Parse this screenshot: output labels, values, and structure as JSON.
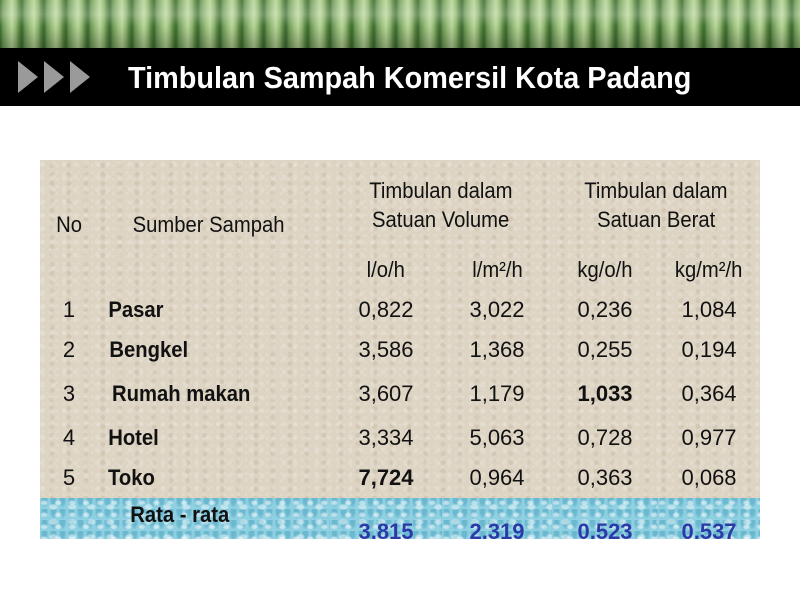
{
  "slide": {
    "title": "Timbulan Sampah Komersil Kota Padang"
  },
  "table": {
    "headers": {
      "no": "No",
      "source": "Sumber Sampah",
      "volume_group_line1": "Timbulan dalam",
      "volume_group_line2": "Satuan Volume",
      "weight_group_line1": "Timbulan dalam",
      "weight_group_line2": "Satuan Berat",
      "unit_lo_h": "l/o/h",
      "unit_lm2_h": "l/m²/h",
      "unit_kgo_h": "kg/o/h",
      "unit_kgm2_h": "kg/m²/h"
    },
    "rows": [
      {
        "no": "1",
        "source": "Pasar",
        "lo_h": "0,822",
        "lm2_h": "3,022",
        "kgo_h": "0,236",
        "kgm2_h": "1,084"
      },
      {
        "no": "2",
        "source": "Bengkel",
        "lo_h": "3,586",
        "lm2_h": "1,368",
        "kgo_h": "0,255",
        "kgm2_h": "0,194"
      },
      {
        "no": "3",
        "source": "Rumah makan",
        "lo_h": "3,607",
        "lm2_h": "1,179",
        "kgo_h": "1,033",
        "kgm2_h": "0,364"
      },
      {
        "no": "4",
        "source": "Hotel",
        "lo_h": "3,334",
        "lm2_h": "5,063",
        "kgo_h": "0,728",
        "kgm2_h": "0,977"
      },
      {
        "no": "5",
        "source": "Toko",
        "lo_h": "7,724",
        "lm2_h": "0,964",
        "kgo_h": "0,363",
        "kgm2_h": "0,068"
      }
    ],
    "average": {
      "label": "Rata - rata",
      "lo_h": "3,815",
      "lm2_h": "2,319",
      "kgo_h": "0,523",
      "kgm2_h": "0,537"
    }
  },
  "colors": {
    "title_bar": "#000000",
    "title_text": "#ffffff",
    "table_background": "#ddd4c3",
    "average_row_background": "#8fd0e2",
    "average_values": "#2b3aa8"
  },
  "icons": [
    "triple-arrow-icon"
  ]
}
